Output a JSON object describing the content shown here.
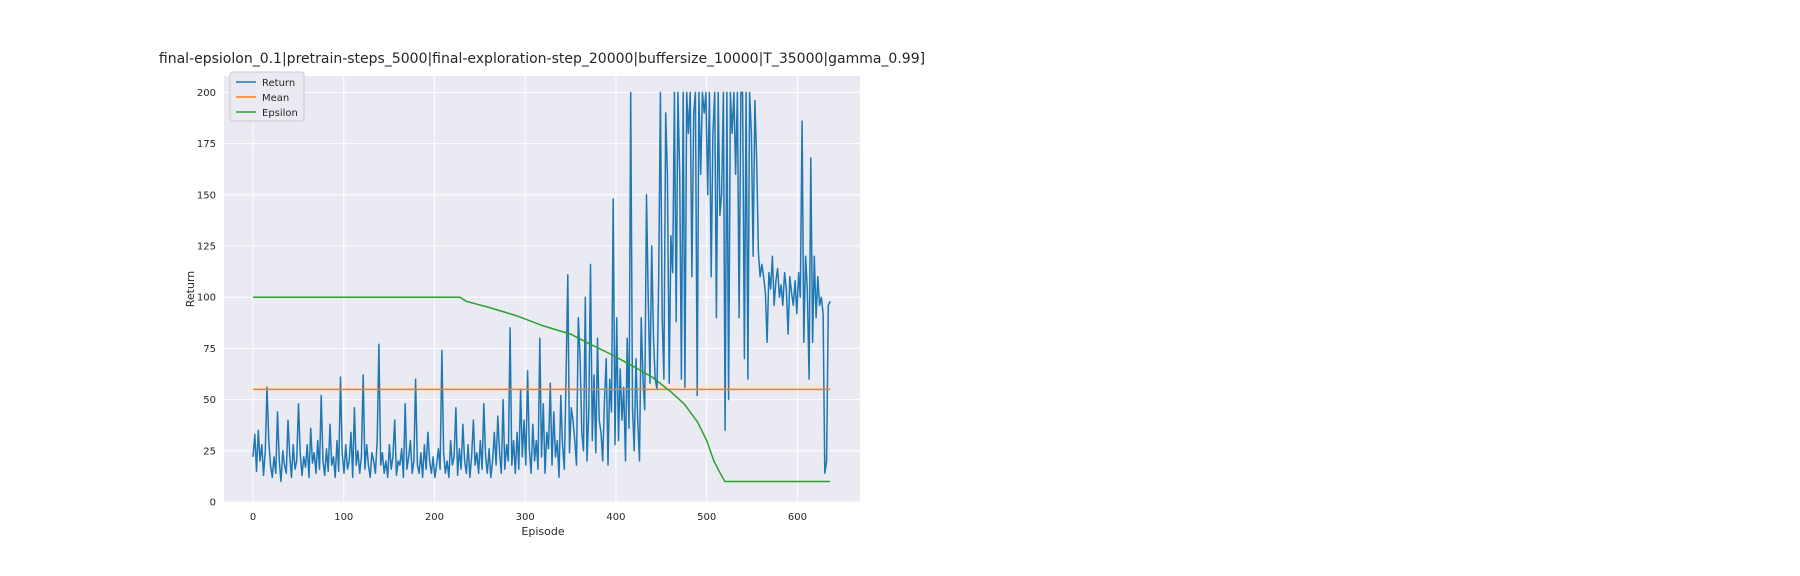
{
  "figure": {
    "background": "#ffffff",
    "plot_background": "#eaeaf2",
    "grid_color": "#ffffff"
  },
  "chart_data": {
    "type": "line",
    "title": "final-epsiolon_0.1|pretrain-steps_5000|final-exploration-step_20000|buffersize_10000|T_35000|gamma_0.99]",
    "xlabel": "Episode",
    "ylabel": "Return",
    "xlim": [
      -32,
      669
    ],
    "ylim": [
      0,
      208
    ],
    "xticks": [
      0,
      100,
      200,
      300,
      400,
      500,
      600
    ],
    "yticks": [
      0,
      25,
      50,
      75,
      100,
      125,
      150,
      175,
      200
    ],
    "grid": true,
    "legend": {
      "placement": "top-left",
      "entries": [
        "Return",
        "Mean",
        "Epsilon"
      ]
    },
    "series": [
      {
        "name": "Return",
        "color": "#1f77b4",
        "x_start": 0,
        "x_end": 636,
        "values": [
          22,
          33,
          15,
          35,
          20,
          28,
          13,
          25,
          56,
          30,
          18,
          12,
          22,
          14,
          44,
          20,
          10,
          25,
          18,
          14,
          40,
          22,
          12,
          28,
          16,
          20,
          48,
          24,
          13,
          22,
          17,
          28,
          12,
          36,
          19,
          24,
          14,
          30,
          16,
          52,
          20,
          13,
          26,
          15,
          38,
          18,
          22,
          12,
          30,
          15,
          61,
          24,
          14,
          28,
          16,
          20,
          34,
          12,
          46,
          18,
          25,
          14,
          22,
          62,
          16,
          28,
          18,
          12,
          24,
          20,
          14,
          30,
          77,
          18,
          24,
          14,
          20,
          12,
          28,
          16,
          22,
          40,
          13,
          20,
          18,
          26,
          12,
          48,
          16,
          22,
          30,
          14,
          20,
          60,
          18,
          14,
          24,
          12,
          28,
          16,
          34,
          20,
          14,
          22,
          12,
          18,
          26,
          16,
          74,
          24,
          14,
          20,
          12,
          30,
          18,
          22,
          46,
          13,
          26,
          16,
          38,
          20,
          14,
          28,
          12,
          22,
          40,
          18,
          24,
          14,
          30,
          16,
          48,
          22,
          14,
          26,
          12,
          20,
          34,
          18,
          42,
          24,
          14,
          50,
          16,
          28,
          20,
          85,
          18,
          30,
          14,
          34,
          16,
          55,
          22,
          40,
          18,
          64,
          26,
          14,
          38,
          20,
          30,
          16,
          80,
          22,
          48,
          14,
          34,
          26,
          58,
          18,
          44,
          22,
          30,
          12,
          52,
          28,
          16,
          60,
          111,
          24,
          46,
          40,
          30,
          18,
          90,
          72,
          34,
          25,
          100,
          20,
          44,
          116,
          30,
          62,
          24,
          80,
          40,
          34,
          20,
          50,
          70,
          18,
          60,
          44,
          148,
          28,
          90,
          30,
          65,
          40,
          56,
          20,
          80,
          36,
          200,
          46,
          25,
          70,
          40,
          20,
          90,
          60,
          45,
          150,
          100,
          58,
          125,
          80,
          60,
          55,
          110,
          200,
          90,
          60,
          190,
          160,
          58,
          130,
          112,
          200,
          88,
          200,
          160,
          60,
          200,
          56,
          200,
          180,
          200,
          110,
          190,
          200,
          52,
          200,
          160,
          200,
          190,
          200,
          150,
          200,
          110,
          180,
          200,
          90,
          200,
          140,
          150,
          200,
          35,
          200,
          50,
          200,
          180,
          200,
          160,
          200,
          90,
          200,
          200,
          70,
          200,
          60,
          200,
          180,
          120,
          196,
          168,
          122,
          110,
          116,
          110,
          102,
          78,
          112,
          104,
          120,
          96,
          108,
          114,
          100,
          106,
          96,
          112,
          104,
          82,
          110,
          102,
          96,
          108,
          92,
          112,
          100,
          186,
          78,
          120,
          104,
          60,
          168,
          78,
          120,
          90,
          110,
          96,
          100,
          92,
          14,
          20,
          96,
          98
        ]
      },
      {
        "name": "Mean",
        "color": "#ff7f0e",
        "x": [
          0,
          636
        ],
        "y": [
          55,
          55
        ]
      },
      {
        "name": "Epsilon",
        "color": "#2ca02c",
        "x": [
          0,
          100,
          200,
          228,
          235,
          260,
          290,
          320,
          350,
          372,
          395,
          420,
          440,
          460,
          475,
          490,
          500,
          508,
          515,
          520,
          560,
          600,
          636
        ],
        "y": [
          100,
          100,
          100,
          100,
          98,
          95,
          91,
          86,
          82,
          77,
          72,
          66,
          61,
          54,
          48,
          39,
          30,
          20,
          14,
          10,
          10,
          10,
          10
        ]
      }
    ]
  }
}
